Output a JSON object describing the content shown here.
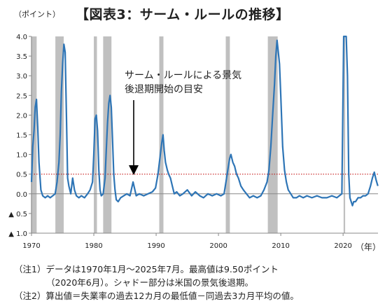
{
  "title": "【図表3：サーム・ルールの推移】",
  "y_unit_label": "（ポイント）",
  "x_unit_label": "（年）",
  "annotation": {
    "line1": "サーム・ルールによる景気",
    "line2": "後退期開始の目安"
  },
  "notes": {
    "note1": "（注1）データは1970年1月～2025年7月。最高値は9.50ポイント",
    "note1b": "（2020年6月）。シャドー部分は米国の景気後退期。",
    "note2": "（注2）算出値＝失業率の過去12カ月の最低値－同過去3カ月平均の値。"
  },
  "colors": {
    "line": "#2e75b6",
    "shade": "#c0c0c0",
    "threshold": "#c00000",
    "axis": "#888888"
  },
  "chart_data": {
    "type": "line",
    "title": "【図表3：サーム・ルールの推移】",
    "ylabel": "（ポイント）",
    "xlabel": "（年）",
    "xlim": [
      1970,
      2025.6
    ],
    "ylim": [
      -1.0,
      4.0
    ],
    "y_ticks": [
      4.0,
      3.5,
      3.0,
      2.5,
      2.0,
      1.5,
      1.0,
      0.5,
      0.0,
      -0.5,
      -1.0
    ],
    "y_tick_labels": [
      "4.0",
      "3.5",
      "3.0",
      "2.5",
      "2.0",
      "1.5",
      "1.0",
      "0.5",
      "0.0",
      "▲ 0.5",
      "▲ 1.0"
    ],
    "x_ticks": [
      1970,
      1980,
      1990,
      2000,
      2010,
      2020
    ],
    "x_tick_labels": [
      "1970",
      "1980",
      "1990",
      "2000",
      "2010",
      "2020"
    ],
    "threshold": 0.5,
    "max_value": {
      "value": 9.5,
      "date": "2020-06"
    },
    "recessions": [
      [
        1969.92,
        1970.83
      ],
      [
        1973.83,
        1975.17
      ],
      [
        1980.0,
        1980.5
      ],
      [
        1981.5,
        1982.83
      ],
      [
        1990.5,
        1991.17
      ],
      [
        2001.17,
        2001.83
      ],
      [
        2007.92,
        2009.5
      ],
      [
        2020.08,
        2020.33
      ]
    ],
    "series": [
      {
        "x": [
          1970.0,
          1970.2,
          1970.4,
          1970.6,
          1970.8,
          1971.0,
          1971.2,
          1971.5,
          1971.8,
          1972.2,
          1972.6,
          1973.0,
          1973.4,
          1973.8,
          1974.1,
          1974.4,
          1974.6,
          1974.8,
          1975.0,
          1975.2,
          1975.4,
          1975.6,
          1975.8,
          1976.0,
          1976.3,
          1976.6,
          1976.9,
          1977.2,
          1977.6,
          1978.0,
          1978.5,
          1979.0,
          1979.4,
          1979.8,
          1980.0,
          1980.2,
          1980.4,
          1980.6,
          1980.8,
          1981.0,
          1981.2,
          1981.5,
          1981.8,
          1982.0,
          1982.2,
          1982.4,
          1982.6,
          1982.8,
          1983.0,
          1983.2,
          1983.4,
          1983.6,
          1983.9,
          1984.3,
          1984.8,
          1985.3,
          1985.8,
          1986.3,
          1986.8,
          1987.3,
          1988.0,
          1988.7,
          1989.4,
          1989.9,
          1990.3,
          1990.6,
          1990.9,
          1991.1,
          1991.3,
          1991.5,
          1991.8,
          1992.0,
          1992.3,
          1992.6,
          1992.9,
          1993.3,
          1993.8,
          1994.3,
          1995.0,
          1995.7,
          1996.3,
          1997.0,
          1997.6,
          1998.3,
          1999.0,
          1999.7,
          2000.4,
          2000.9,
          2001.2,
          2001.5,
          2001.8,
          2002.0,
          2002.3,
          2002.6,
          2002.9,
          2003.2,
          2003.6,
          2004.0,
          2004.5,
          2005.0,
          2005.6,
          2006.2,
          2006.8,
          2007.3,
          2007.8,
          2008.1,
          2008.4,
          2008.7,
          2009.0,
          2009.2,
          2009.4,
          2009.6,
          2009.8,
          2010.0,
          2010.3,
          2010.6,
          2010.9,
          2011.2,
          2011.6,
          2012.0,
          2012.5,
          2013.0,
          2013.6,
          2014.2,
          2015.0,
          2015.8,
          2016.6,
          2017.4,
          2018.2,
          2019.0,
          2019.8,
          2020.1,
          2020.3,
          2020.5,
          2020.7,
          2020.9,
          2021.1,
          2021.3,
          2021.5,
          2021.7,
          2022.0,
          2022.4,
          2022.8,
          2023.2,
          2023.6,
          2024.0,
          2024.4,
          2024.7,
          2025.0,
          2025.3,
          2025.58
        ],
        "y": [
          0.3,
          1.2,
          1.6,
          2.2,
          2.4,
          1.7,
          0.8,
          0.1,
          -0.05,
          -0.1,
          -0.05,
          -0.1,
          -0.05,
          0.0,
          0.3,
          0.8,
          1.5,
          2.6,
          3.3,
          3.8,
          3.6,
          2.0,
          0.4,
          0.2,
          0.0,
          0.4,
          0.1,
          -0.05,
          -0.1,
          -0.05,
          -0.1,
          0.0,
          0.1,
          0.3,
          1.0,
          1.9,
          2.0,
          1.6,
          0.6,
          0.1,
          -0.05,
          0.0,
          0.4,
          1.1,
          1.8,
          2.3,
          2.5,
          2.2,
          1.4,
          0.5,
          0.1,
          -0.15,
          -0.2,
          -0.1,
          -0.05,
          0.0,
          -0.05,
          0.3,
          -0.05,
          0.0,
          -0.05,
          0.0,
          0.05,
          0.15,
          0.5,
          0.9,
          1.3,
          1.5,
          1.1,
          0.8,
          0.6,
          0.5,
          0.4,
          0.2,
          0.0,
          0.05,
          -0.05,
          0.0,
          0.1,
          -0.05,
          0.05,
          -0.05,
          -0.1,
          0.0,
          -0.05,
          0.0,
          -0.05,
          0.0,
          0.3,
          0.6,
          0.9,
          1.0,
          0.8,
          0.7,
          0.5,
          0.4,
          0.2,
          0.1,
          0.0,
          -0.1,
          -0.05,
          -0.1,
          -0.05,
          0.1,
          0.3,
          0.6,
          1.2,
          2.0,
          2.8,
          3.5,
          3.9,
          3.6,
          3.3,
          2.5,
          1.2,
          0.6,
          0.3,
          0.1,
          0.0,
          -0.1,
          -0.1,
          -0.05,
          -0.1,
          -0.05,
          -0.1,
          -0.05,
          -0.1,
          -0.1,
          -0.05,
          -0.1,
          0.0,
          4.0,
          4.0,
          4.0,
          3.0,
          0.5,
          -0.1,
          -0.2,
          -0.3,
          -0.2,
          -0.2,
          -0.1,
          -0.1,
          -0.05,
          -0.05,
          0.0,
          0.2,
          0.4,
          0.55,
          0.35,
          0.2
        ]
      }
    ]
  }
}
